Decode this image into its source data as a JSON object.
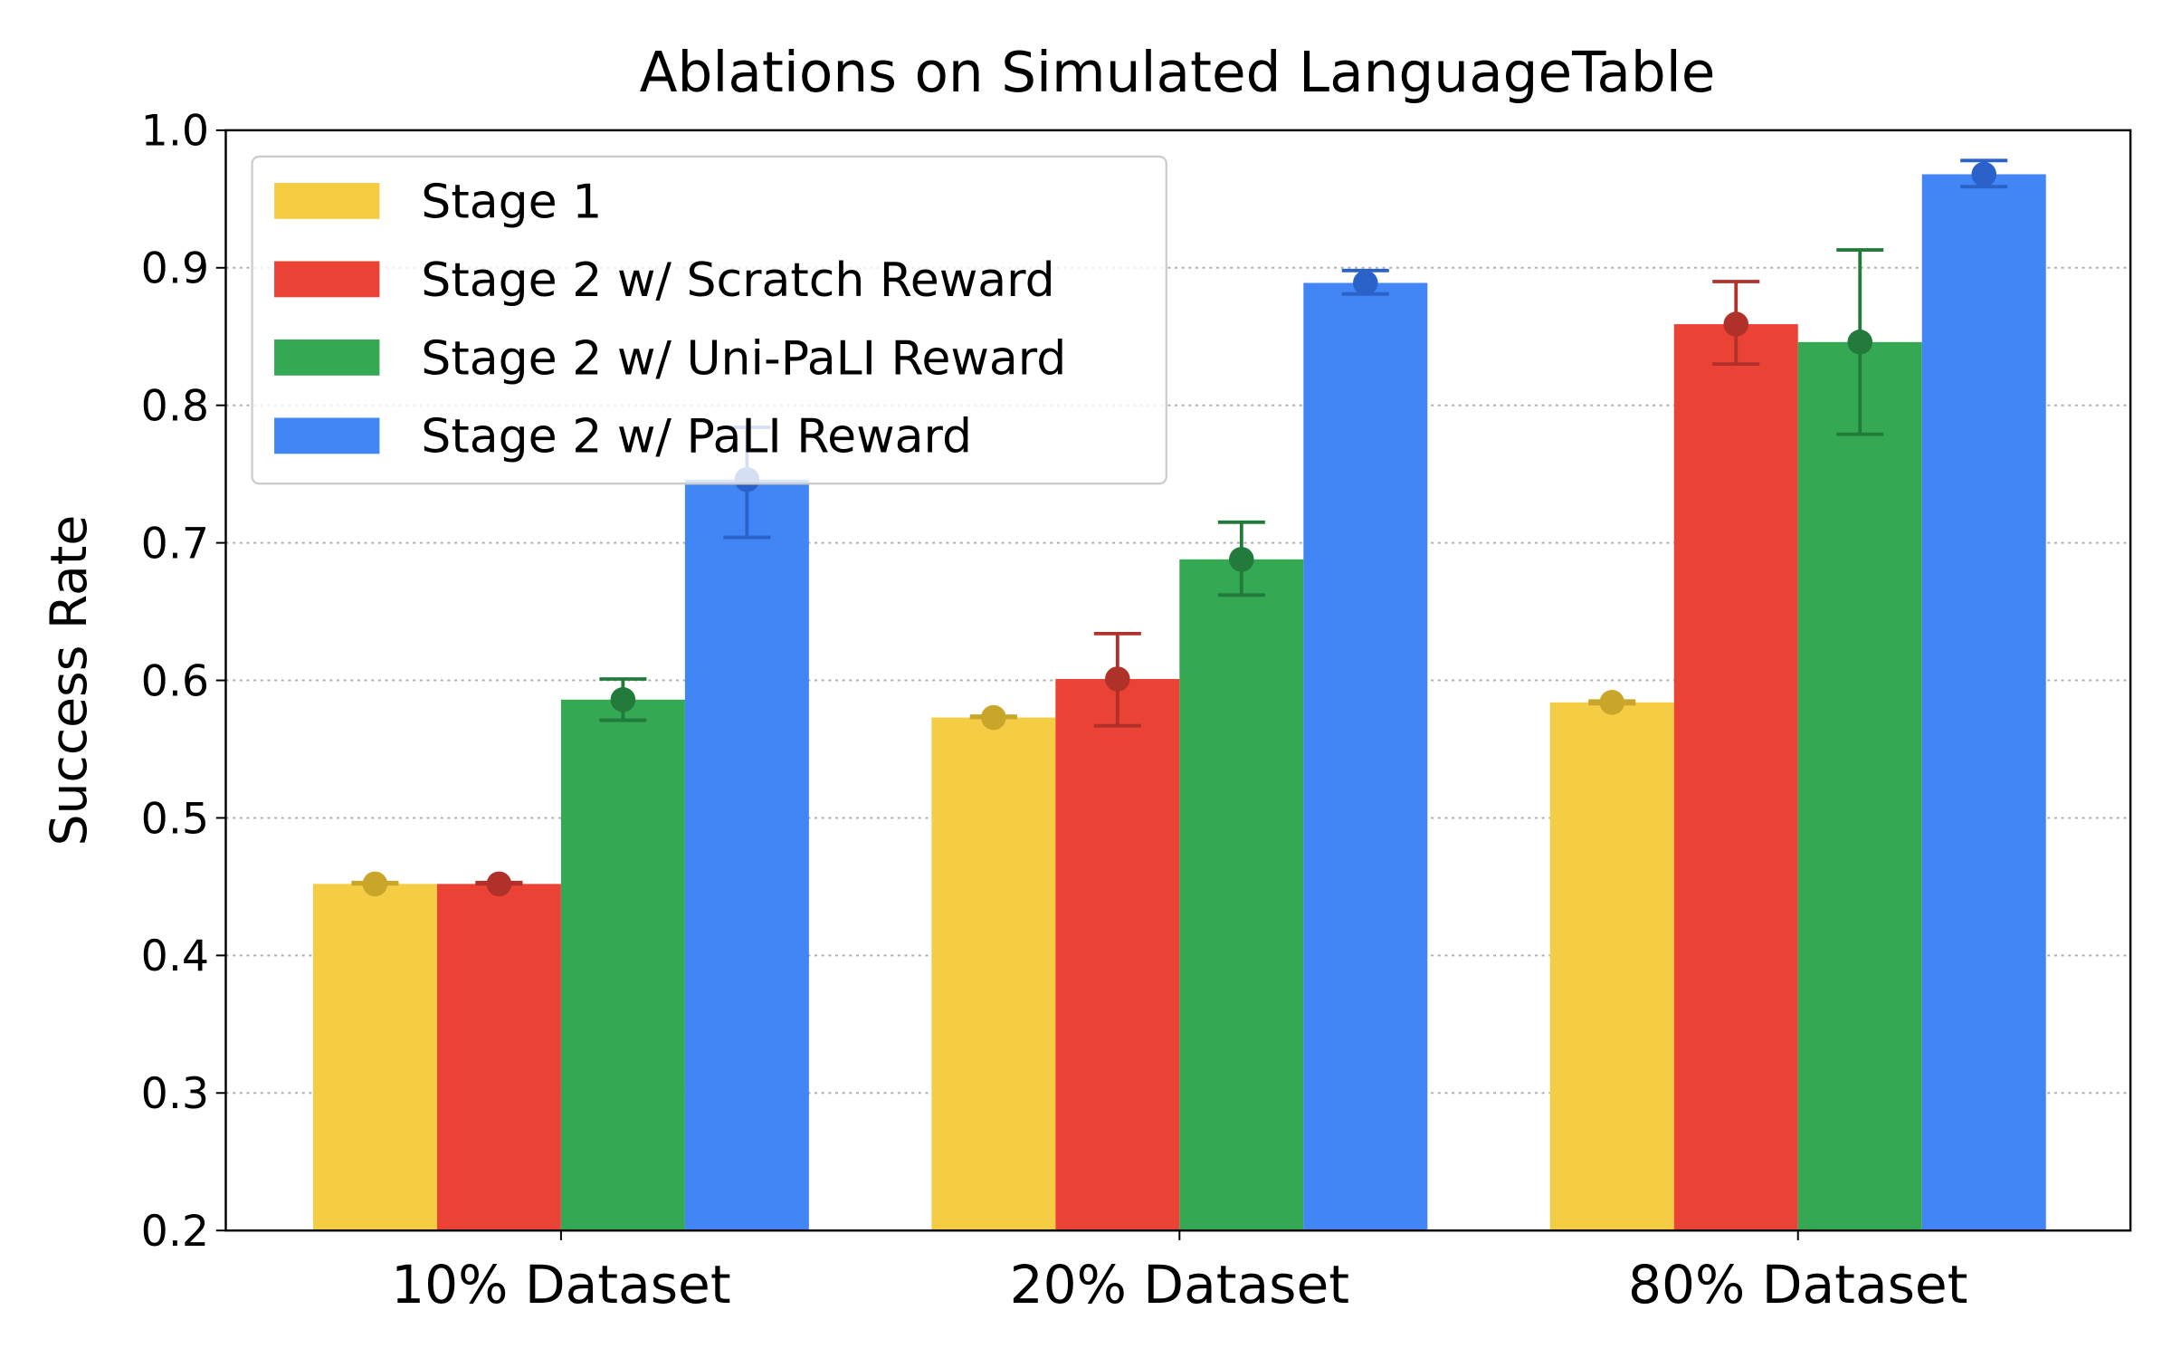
{
  "chart_data": {
    "type": "bar",
    "title": "Ablations on Simulated LanguageTable",
    "xlabel": "",
    "ylabel": "Success Rate",
    "ylim": [
      0.2,
      1.0
    ],
    "yticks": [
      "0.2",
      "0.3",
      "0.4",
      "0.5",
      "0.6",
      "0.7",
      "0.8",
      "0.9",
      "1.0"
    ],
    "grid": "horizontal dotted",
    "legend_position": "top-left",
    "categories": [
      "10% Dataset",
      "20% Dataset",
      "80% Dataset"
    ],
    "series": [
      {
        "name": "Stage 1",
        "color": "#F4CD45",
        "error_color": "#C9A62A",
        "values": [
          0.452,
          0.573,
          0.584
        ],
        "error_low": [
          0.452,
          0.573,
          0.583
        ],
        "error_high": [
          0.453,
          0.574,
          0.585
        ]
      },
      {
        "name": "Stage 2 w/ Scratch Reward",
        "color": "#EA4335",
        "error_color": "#B0302A",
        "values": [
          0.452,
          0.601,
          0.859
        ],
        "error_low": [
          0.452,
          0.567,
          0.83
        ],
        "error_high": [
          0.453,
          0.634,
          0.89
        ]
      },
      {
        "name": "Stage 2 w/ Uni-PaLI Reward",
        "color": "#34A853",
        "error_color": "#227A3B",
        "values": [
          0.586,
          0.688,
          0.846
        ],
        "error_low": [
          0.571,
          0.662,
          0.779
        ],
        "error_high": [
          0.601,
          0.715,
          0.913
        ]
      },
      {
        "name": "Stage 2 w/ PaLI Reward",
        "color": "#4285F4",
        "error_color": "#2A62C9",
        "values": [
          0.746,
          0.889,
          0.968
        ],
        "error_low": [
          0.704,
          0.881,
          0.959
        ],
        "error_high": [
          0.784,
          0.898,
          0.978
        ]
      }
    ]
  }
}
